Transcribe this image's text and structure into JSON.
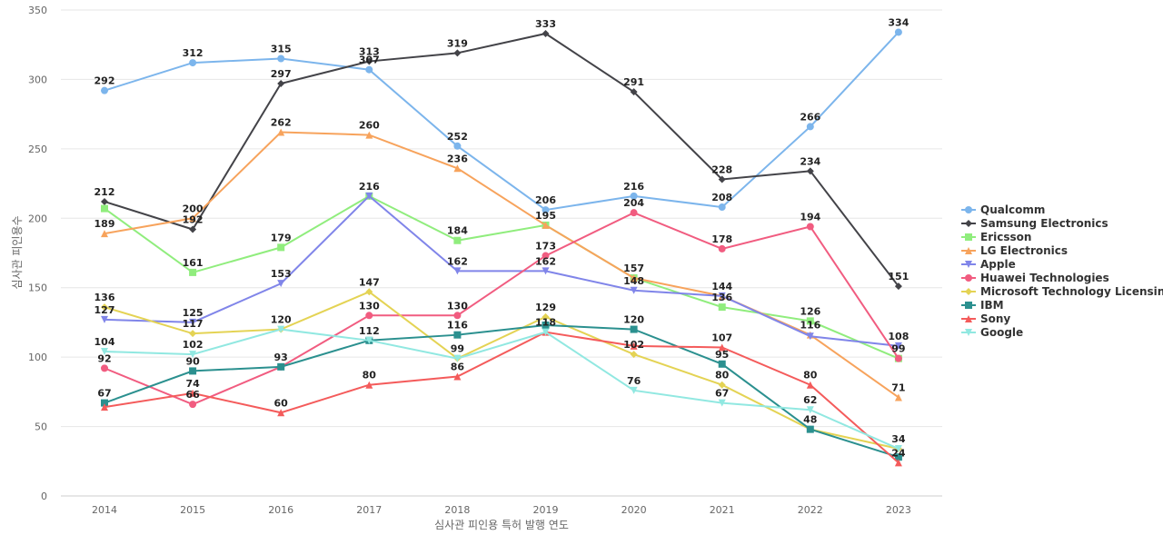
{
  "chart_data": {
    "type": "line",
    "xlabel": "심사관 피인용 특허 발행 연도",
    "ylabel": "심사관 피인용수",
    "categories": [
      "2014",
      "2015",
      "2016",
      "2017",
      "2018",
      "2019",
      "2020",
      "2021",
      "2022",
      "2023"
    ],
    "ylim": [
      0,
      350
    ],
    "yticks": [
      0,
      50,
      100,
      150,
      200,
      250,
      300,
      350
    ],
    "grid": true,
    "legend": "right",
    "series": [
      {
        "name": "Qualcomm",
        "color": "#7cb5ec",
        "marker": "circle",
        "values": [
          292,
          312,
          315,
          307,
          252,
          206,
          216,
          208,
          266,
          334
        ]
      },
      {
        "name": "Samsung Electronics",
        "color": "#434348",
        "marker": "diamond",
        "values": [
          212,
          192,
          297,
          313,
          319,
          333,
          291,
          228,
          234,
          151
        ]
      },
      {
        "name": "Ericsson",
        "color": "#90ed7d",
        "marker": "square",
        "values": [
          207,
          161,
          179,
          216,
          184,
          195,
          157,
          136,
          126,
          99
        ]
      },
      {
        "name": "LG Electronics",
        "color": "#f7a35c",
        "marker": "triangle",
        "values": [
          189,
          200,
          262,
          260,
          236,
          195,
          157,
          144,
          116,
          71
        ]
      },
      {
        "name": "Apple",
        "color": "#8085e9",
        "marker": "triangle-down",
        "values": [
          127,
          125,
          153,
          216,
          162,
          162,
          148,
          144,
          115,
          108
        ]
      },
      {
        "name": "Huawei Technologies",
        "color": "#f15c80",
        "marker": "circle",
        "values": [
          92,
          66,
          93,
          130,
          130,
          173,
          204,
          178,
          194,
          99
        ]
      },
      {
        "name": "Microsoft Technology Licensing",
        "color": "#e4d354",
        "marker": "diamond",
        "values": [
          136,
          117,
          120,
          147,
          99,
          129,
          102,
          80,
          48,
          34
        ]
      },
      {
        "name": "IBM",
        "color": "#2b908f",
        "marker": "square",
        "values": [
          67,
          90,
          93,
          112,
          116,
          123,
          120,
          95,
          48,
          28
        ]
      },
      {
        "name": "Sony",
        "color": "#f45b5b",
        "marker": "triangle",
        "values": [
          64,
          74,
          60,
          80,
          86,
          118,
          108,
          107,
          80,
          24
        ]
      },
      {
        "name": "Google",
        "color": "#91e8e1",
        "marker": "triangle-down",
        "values": [
          104,
          102,
          120,
          112,
          99,
          118,
          76,
          67,
          62,
          34
        ]
      }
    ],
    "data_labels": [
      {
        "x": "2014",
        "text": "292",
        "y": 292
      },
      {
        "x": "2015",
        "text": "312",
        "y": 312
      },
      {
        "x": "2016",
        "text": "315",
        "y": 315
      },
      {
        "x": "2017",
        "text": "307",
        "y": 307
      },
      {
        "x": "2018",
        "text": "252",
        "y": 252
      },
      {
        "x": "2019",
        "text": "206",
        "y": 206
      },
      {
        "x": "2020",
        "text": "216",
        "y": 216
      },
      {
        "x": "2021",
        "text": "208",
        "y": 208
      },
      {
        "x": "2022",
        "text": "266",
        "y": 266
      },
      {
        "x": "2023",
        "text": "334",
        "y": 334
      },
      {
        "x": "2014",
        "text": "212",
        "y": 212
      },
      {
        "x": "2015",
        "text": "192",
        "y": 192
      },
      {
        "x": "2016",
        "text": "297",
        "y": 297
      },
      {
        "x": "2017",
        "text": "313",
        "y": 313
      },
      {
        "x": "2018",
        "text": "319",
        "y": 319
      },
      {
        "x": "2019",
        "text": "333",
        "y": 333
      },
      {
        "x": "2020",
        "text": "291",
        "y": 291
      },
      {
        "x": "2021",
        "text": "228",
        "y": 228
      },
      {
        "x": "2022",
        "text": "234",
        "y": 234
      },
      {
        "x": "2023",
        "text": "151",
        "y": 151
      },
      {
        "x": "2015",
        "text": "161",
        "y": 161
      },
      {
        "x": "2016",
        "text": "179",
        "y": 179
      },
      {
        "x": "2017",
        "text": "216",
        "y": 216
      },
      {
        "x": "2018",
        "text": "184",
        "y": 184
      },
      {
        "x": "2019",
        "text": "195",
        "y": 195
      },
      {
        "x": "2021",
        "text": "136",
        "y": 136
      },
      {
        "x": "2022",
        "text": "126",
        "y": 126
      },
      {
        "x": "2023",
        "text": "99",
        "y": 99
      },
      {
        "x": "2014",
        "text": "189",
        "y": 189
      },
      {
        "x": "2015",
        "text": "200",
        "y": 200
      },
      {
        "x": "2016",
        "text": "262",
        "y": 262
      },
      {
        "x": "2017",
        "text": "260",
        "y": 260
      },
      {
        "x": "2018",
        "text": "236",
        "y": 236
      },
      {
        "x": "2020",
        "text": "157",
        "y": 157
      },
      {
        "x": "2021",
        "text": "144",
        "y": 144
      },
      {
        "x": "2022",
        "text": "116",
        "y": 116
      },
      {
        "x": "2023",
        "text": "71",
        "y": 71
      },
      {
        "x": "2014",
        "text": "127",
        "y": 127
      },
      {
        "x": "2015",
        "text": "125",
        "y": 125
      },
      {
        "x": "2016",
        "text": "153",
        "y": 153
      },
      {
        "x": "2018",
        "text": "162",
        "y": 162
      },
      {
        "x": "2019",
        "text": "162",
        "y": 162
      },
      {
        "x": "2020",
        "text": "148",
        "y": 148
      },
      {
        "x": "2023",
        "text": "108",
        "y": 108
      },
      {
        "x": "2014",
        "text": "92",
        "y": 92
      },
      {
        "x": "2015",
        "text": "66",
        "y": 66
      },
      {
        "x": "2017",
        "text": "130",
        "y": 130
      },
      {
        "x": "2018",
        "text": "130",
        "y": 130
      },
      {
        "x": "2019",
        "text": "173",
        "y": 173
      },
      {
        "x": "2020",
        "text": "204",
        "y": 204
      },
      {
        "x": "2021",
        "text": "178",
        "y": 178
      },
      {
        "x": "2022",
        "text": "194",
        "y": 194
      },
      {
        "x": "2014",
        "text": "136",
        "y": 136
      },
      {
        "x": "2015",
        "text": "117",
        "y": 117
      },
      {
        "x": "2016",
        "text": "120",
        "y": 120
      },
      {
        "x": "2017",
        "text": "147",
        "y": 147
      },
      {
        "x": "2018",
        "text": "99",
        "y": 99
      },
      {
        "x": "2019",
        "text": "129",
        "y": 129
      },
      {
        "x": "2020",
        "text": "102",
        "y": 102
      },
      {
        "x": "2021",
        "text": "80",
        "y": 80
      },
      {
        "x": "2022",
        "text": "48",
        "y": 48
      },
      {
        "x": "2023",
        "text": "34",
        "y": 34
      },
      {
        "x": "2014",
        "text": "67",
        "y": 67
      },
      {
        "x": "2015",
        "text": "90",
        "y": 90
      },
      {
        "x": "2016",
        "text": "93",
        "y": 93
      },
      {
        "x": "2017",
        "text": "112",
        "y": 112
      },
      {
        "x": "2018",
        "text": "116",
        "y": 116
      },
      {
        "x": "2019",
        "text": "118",
        "y": 118
      },
      {
        "x": "2020",
        "text": "120",
        "y": 120
      },
      {
        "x": "2021",
        "text": "95",
        "y": 95
      },
      {
        "x": "2023",
        "text": "24",
        "y": 24
      },
      {
        "x": "2015",
        "text": "74",
        "y": 74
      },
      {
        "x": "2016",
        "text": "60",
        "y": 60
      },
      {
        "x": "2017",
        "text": "80",
        "y": 80
      },
      {
        "x": "2018",
        "text": "86",
        "y": 86
      },
      {
        "x": "2021",
        "text": "107",
        "y": 107
      },
      {
        "x": "2022",
        "text": "80",
        "y": 80
      },
      {
        "x": "2014",
        "text": "104",
        "y": 104
      },
      {
        "x": "2015",
        "text": "102",
        "y": 102
      },
      {
        "x": "2020",
        "text": "76",
        "y": 76
      },
      {
        "x": "2021",
        "text": "67",
        "y": 67
      },
      {
        "x": "2022",
        "text": "62",
        "y": 62
      }
    ]
  }
}
